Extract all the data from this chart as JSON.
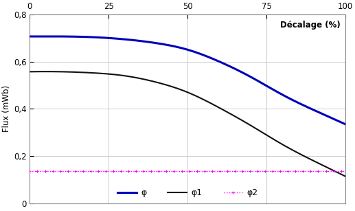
{
  "ylabel": "Flux (mWb)",
  "xlim": [
    0,
    100
  ],
  "ylim": [
    0,
    0.8
  ],
  "x_ticks": [
    0,
    25,
    50,
    75,
    100
  ],
  "y_ticks": [
    0,
    0.2,
    0.4,
    0.6,
    0.8
  ],
  "phi_color": "#0000BB",
  "phi1_color": "#111111",
  "phi2_color": "#FF00FF",
  "grid_color": "#C8C8C8",
  "background_color": "#FFFFFF",
  "legend_labels": [
    "φ",
    "φ1",
    "φ2"
  ],
  "annotation": "Décalage (%)",
  "phi_ctrl_x": [
    0,
    10,
    20,
    30,
    40,
    50,
    60,
    70,
    80,
    90,
    100
  ],
  "phi_ctrl_y": [
    0.706,
    0.706,
    0.703,
    0.694,
    0.678,
    0.65,
    0.6,
    0.535,
    0.46,
    0.395,
    0.335
  ],
  "phi1_ctrl_x": [
    0,
    10,
    20,
    30,
    40,
    50,
    60,
    70,
    80,
    90,
    100
  ],
  "phi1_ctrl_y": [
    0.557,
    0.557,
    0.552,
    0.54,
    0.513,
    0.47,
    0.405,
    0.33,
    0.25,
    0.18,
    0.115
  ],
  "phi2_value": 0.137
}
